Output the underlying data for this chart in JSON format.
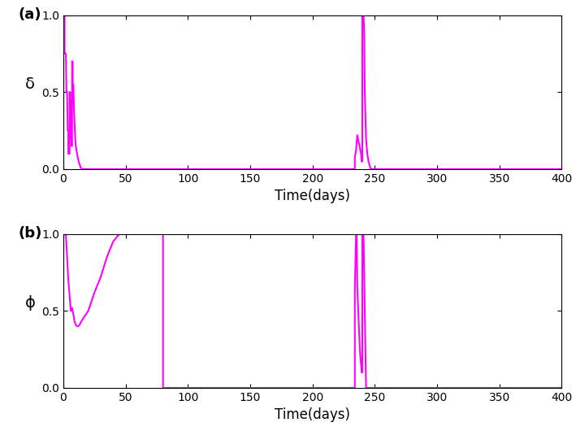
{
  "fig_width": 7.09,
  "fig_height": 5.3,
  "dpi": 100,
  "color": "#FF00FF",
  "linewidth": 1.5,
  "xlim": [
    0,
    400
  ],
  "xticks": [
    0,
    50,
    100,
    150,
    200,
    250,
    300,
    350,
    400
  ],
  "xlabel": "Time(days)",
  "plot_a": {
    "label": "(a)",
    "ylabel": "δ",
    "ylim": [
      0,
      1
    ],
    "yticks": [
      0,
      0.5,
      1
    ]
  },
  "plot_b": {
    "label": "(b)",
    "ylabel": "ϕ",
    "ylim": [
      0,
      1
    ],
    "yticks": [
      0,
      0.5,
      1
    ]
  },
  "delta_t": [
    0,
    0.01,
    1,
    1.01,
    2,
    2.5,
    3,
    3.5,
    4,
    4.01,
    5,
    5.01,
    5.5,
    5.51,
    6,
    6.01,
    6.5,
    6.51,
    7,
    7.01,
    7.5,
    7.51,
    8,
    8.5,
    9,
    9.5,
    10,
    11,
    12,
    13,
    14,
    15,
    20,
    234,
    234.01,
    235,
    235.5,
    236,
    237,
    238,
    238.5,
    239,
    239.5,
    240,
    240.01,
    241,
    241.5,
    242,
    243,
    244,
    245,
    246,
    247,
    400
  ],
  "delta_v": [
    0,
    1,
    1,
    0.75,
    0.75,
    0.5,
    0.5,
    0.25,
    0.25,
    0.1,
    0.1,
    0.5,
    0.5,
    0.45,
    0.45,
    0.2,
    0.2,
    0.15,
    0.15,
    0.7,
    0.7,
    0.55,
    0.55,
    0.4,
    0.3,
    0.2,
    0.15,
    0.1,
    0.06,
    0.03,
    0.01,
    0,
    0,
    0,
    0.08,
    0.12,
    0.18,
    0.22,
    0.18,
    0.14,
    0.12,
    0.1,
    0.05,
    0.05,
    1,
    1,
    0.9,
    0.5,
    0.2,
    0.1,
    0.05,
    0.02,
    0,
    0
  ],
  "phi_t": [
    0,
    0.01,
    1,
    1.5,
    2,
    3,
    4,
    5,
    6,
    7,
    8,
    9,
    10,
    11,
    12,
    13,
    15,
    20,
    25,
    30,
    35,
    40,
    45,
    50,
    79.99,
    80,
    80.01,
    234,
    234.01,
    235,
    235.5,
    236,
    236.5,
    237,
    237.5,
    238,
    238.5,
    239,
    239.5,
    240,
    240.01,
    241,
    242,
    243,
    400
  ],
  "phi_v": [
    0,
    1,
    1,
    1,
    1,
    0.85,
    0.7,
    0.6,
    0.5,
    0.52,
    0.48,
    0.43,
    0.41,
    0.4,
    0.4,
    0.41,
    0.44,
    0.5,
    0.62,
    0.72,
    0.85,
    0.95,
    1.0,
    1.0,
    1.0,
    1.0,
    0,
    0,
    0.65,
    1.0,
    1.0,
    0.65,
    0.55,
    0.45,
    0.35,
    0.25,
    0.2,
    0.15,
    0.1,
    0.1,
    1,
    1,
    0.5,
    0,
    0
  ]
}
